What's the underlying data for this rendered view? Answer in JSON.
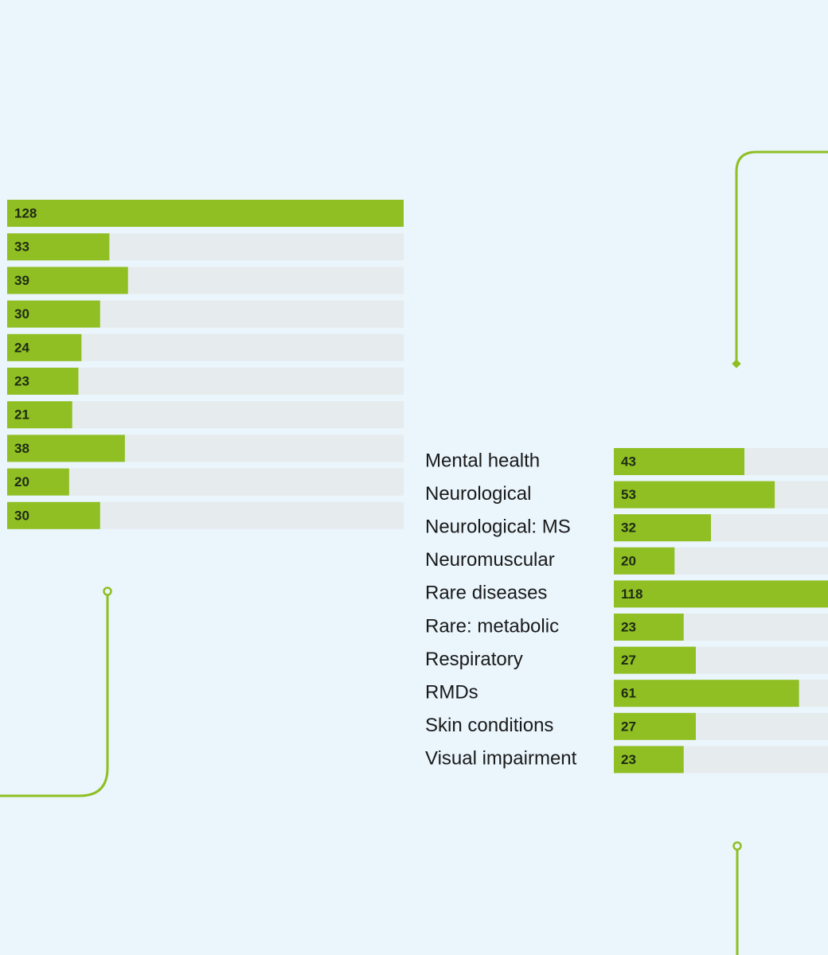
{
  "chart_data": [
    {
      "type": "bar",
      "orientation": "horizontal",
      "values": [
        128,
        33,
        39,
        30,
        24,
        23,
        21,
        38,
        20,
        30
      ],
      "color": "#8fbf22",
      "track_color": "#e6ebee",
      "xlim": [
        0,
        128
      ]
    },
    {
      "type": "bar",
      "orientation": "horizontal",
      "categories": [
        "Mental health",
        "Neurological",
        "Neurological: MS",
        "Neuromuscular",
        "Rare diseases",
        "Rare: metabolic",
        "Respiratory",
        "RMDs",
        "Skin conditions",
        "Visual impairment"
      ],
      "values": [
        43,
        53,
        32,
        20,
        118,
        23,
        27,
        61,
        27,
        23
      ],
      "color": "#8fbf22",
      "track_color": "#e6ebee",
      "xlim": [
        0,
        118
      ]
    }
  ]
}
